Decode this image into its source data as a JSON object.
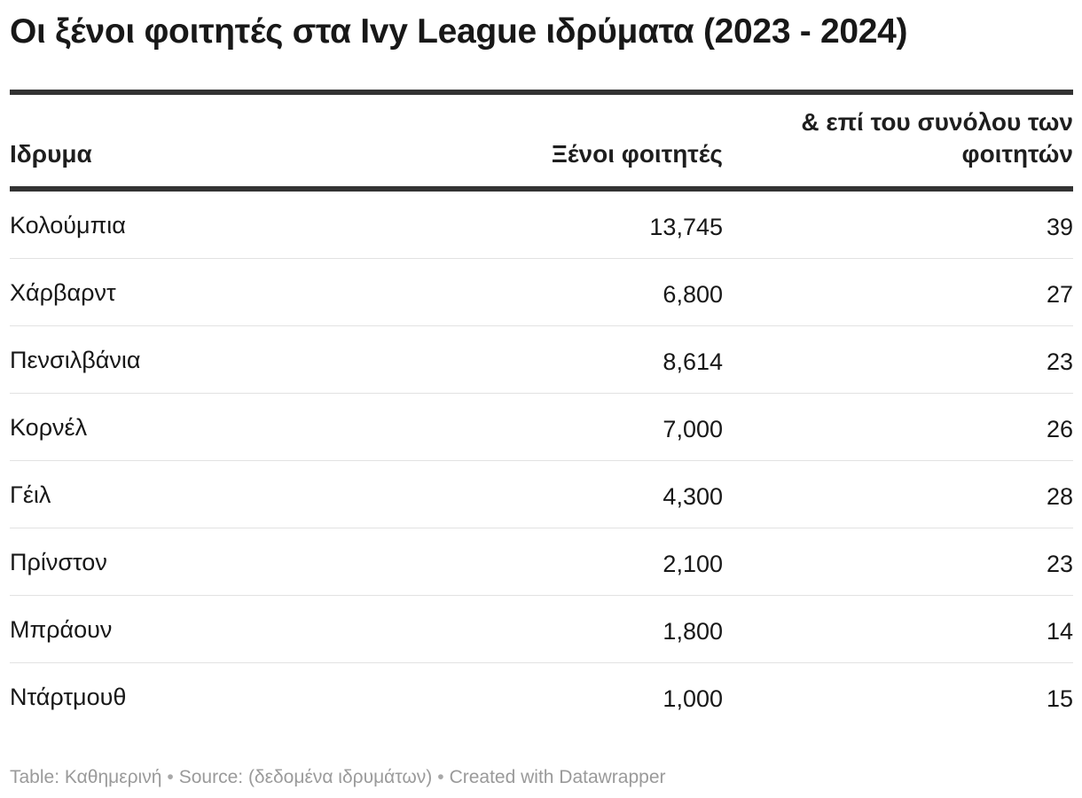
{
  "chart_data": {
    "type": "table",
    "title": "Οι ξένοι φοιτητές στα Ivy League ιδρύματα (2023 - 2024)",
    "columns": [
      "Ιδρυμα",
      "Ξένοι φοιτητές",
      "& επί του συνόλου των φοιτητών"
    ],
    "rows": [
      {
        "name": "Κολούμπια",
        "foreign_students": "13,745",
        "share": "39"
      },
      {
        "name": "Χάρβαρντ",
        "foreign_students": "6,800",
        "share": "27"
      },
      {
        "name": "Πενσιλβάνια",
        "foreign_students": "8,614",
        "share": "23"
      },
      {
        "name": "Κορνέλ",
        "foreign_students": "7,000",
        "share": "26"
      },
      {
        "name": "Γέιλ",
        "foreign_students": "4,300",
        "share": "28"
      },
      {
        "name": "Πρίνστον",
        "foreign_students": "2,100",
        "share": "23"
      },
      {
        "name": "Μπράουν",
        "foreign_students": "1,800",
        "share": "14"
      },
      {
        "name": "Ντάρτμουθ",
        "foreign_students": "1,000",
        "share": "15"
      }
    ]
  },
  "footer": {
    "table_label": "Table: Καθημερινή",
    "source_label": "Source: (δεδομένα ιδρυμάτων)",
    "created_label": "Created with Datawrapper",
    "separator": "•"
  }
}
